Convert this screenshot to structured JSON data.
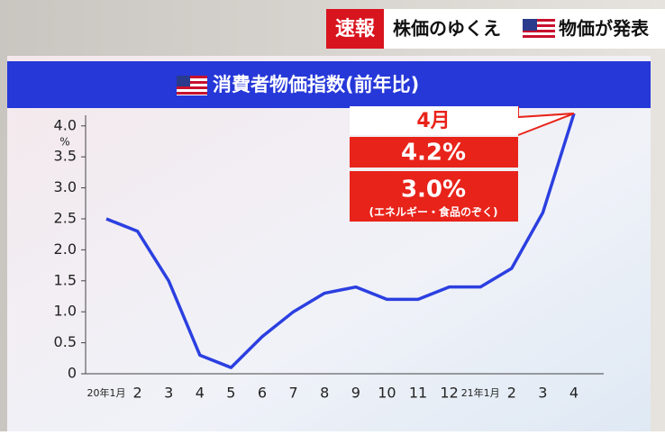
{
  "header": {
    "badge": "速報",
    "topic": "株価のゆくえ",
    "subject": "物価が発表"
  },
  "chart_data": {
    "type": "line",
    "title": "消費者物価指数(前年比)",
    "y_unit": "%",
    "categories": [
      "20年1月",
      "2",
      "3",
      "4",
      "5",
      "6",
      "7",
      "8",
      "9",
      "10",
      "11",
      "12",
      "21年1月",
      "2",
      "3",
      "4"
    ],
    "series": [
      {
        "color": "#2b3fe0",
        "values": [
          2.5,
          2.3,
          1.5,
          0.3,
          0.1,
          0.6,
          1.0,
          1.3,
          1.4,
          1.2,
          1.2,
          1.4,
          1.4,
          1.7,
          2.6,
          4.2
        ]
      }
    ],
    "ylim": [
      0,
      4.2
    ],
    "yticks": [
      0,
      0.5,
      {
        "value": 1,
        "label": "1.0"
      },
      1.5,
      {
        "value": 2,
        "label": "2.0"
      },
      2.5,
      {
        "value": 3,
        "label": "3.0"
      },
      3.5,
      {
        "value": 4,
        "label": "4.0"
      }
    ],
    "annotation": {
      "month": "4月",
      "headline": "4.2%",
      "core": "3.0%",
      "core_note": "(エネルギー・食品のぞく)"
    }
  }
}
